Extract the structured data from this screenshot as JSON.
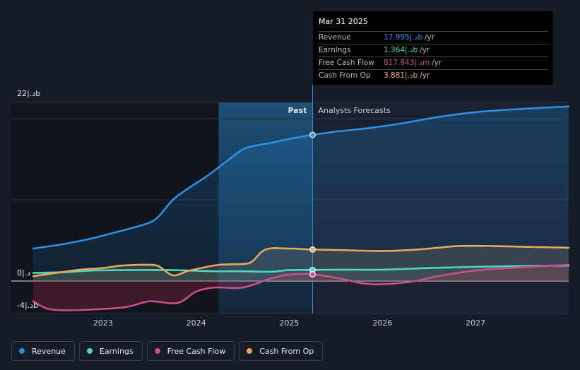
{
  "chart_data": {
    "type": "line",
    "title": "",
    "xlabel": "",
    "ylabel": "",
    "y_unit_label": "",
    "ylim": [
      -4,
      22
    ],
    "xlim": [
      2022.25,
      2028.0
    ],
    "y_tick_labels": [
      {
        "value": 22,
        "label": "22|.دb"
      },
      {
        "value": 0,
        "label": "0|.د"
      },
      {
        "value": -4,
        "label": "-4|.دb"
      }
    ],
    "x_ticks": [
      {
        "value": 2023,
        "label": "2023"
      },
      {
        "value": 2024,
        "label": "2024"
      },
      {
        "value": 2025,
        "label": "2025"
      },
      {
        "value": 2026,
        "label": "2026"
      },
      {
        "value": 2027,
        "label": "2027"
      }
    ],
    "past_label": "Past",
    "forecast_label": "Analysts Forecasts",
    "past_end_x": 2025.25,
    "past_start_x": 2024.24,
    "series": [
      {
        "name": "Revenue",
        "color": "#2f8fe0",
        "points": [
          [
            2022.25,
            4.0
          ],
          [
            2022.6,
            4.6
          ],
          [
            2022.9,
            5.3
          ],
          [
            2023.1,
            5.9
          ],
          [
            2023.3,
            6.5
          ],
          [
            2023.5,
            7.2
          ],
          [
            2023.6,
            8.0
          ],
          [
            2023.75,
            10.0
          ],
          [
            2023.9,
            11.3
          ],
          [
            2024.1,
            12.8
          ],
          [
            2024.3,
            14.5
          ],
          [
            2024.5,
            16.2
          ],
          [
            2024.65,
            16.7
          ],
          [
            2024.8,
            17.0
          ],
          [
            2025.0,
            17.5
          ],
          [
            2025.25,
            17.995
          ],
          [
            2025.5,
            18.4
          ],
          [
            2025.9,
            18.9
          ],
          [
            2026.2,
            19.4
          ],
          [
            2026.6,
            20.2
          ],
          [
            2027.0,
            20.8
          ],
          [
            2027.5,
            21.2
          ],
          [
            2028.0,
            21.5
          ]
        ]
      },
      {
        "name": "Earnings",
        "color": "#4fd6c0",
        "points": [
          [
            2022.25,
            1.0
          ],
          [
            2022.6,
            1.1
          ],
          [
            2022.9,
            1.3
          ],
          [
            2023.3,
            1.35
          ],
          [
            2023.7,
            1.35
          ],
          [
            2023.9,
            1.3
          ],
          [
            2024.2,
            1.2
          ],
          [
            2024.5,
            1.2
          ],
          [
            2024.8,
            1.15
          ],
          [
            2025.0,
            1.35
          ],
          [
            2025.25,
            1.364
          ],
          [
            2025.5,
            1.4
          ],
          [
            2026.0,
            1.4
          ],
          [
            2026.5,
            1.6
          ],
          [
            2027.0,
            1.75
          ],
          [
            2027.5,
            1.85
          ],
          [
            2028.0,
            1.9
          ]
        ]
      },
      {
        "name": "Free Cash Flow",
        "color": "#c94f8a",
        "points": [
          [
            2022.25,
            -2.5
          ],
          [
            2022.4,
            -3.4
          ],
          [
            2022.6,
            -3.6
          ],
          [
            2022.9,
            -3.5
          ],
          [
            2023.25,
            -3.2
          ],
          [
            2023.5,
            -2.5
          ],
          [
            2023.8,
            -2.7
          ],
          [
            2024.0,
            -1.3
          ],
          [
            2024.2,
            -0.8
          ],
          [
            2024.5,
            -0.8
          ],
          [
            2024.8,
            0.3
          ],
          [
            2025.0,
            0.8
          ],
          [
            2025.25,
            0.818
          ],
          [
            2025.5,
            0.4
          ],
          [
            2025.8,
            -0.3
          ],
          [
            2026.0,
            -0.4
          ],
          [
            2026.3,
            -0.1
          ],
          [
            2026.6,
            0.6
          ],
          [
            2027.0,
            1.3
          ],
          [
            2027.5,
            1.7
          ],
          [
            2028.0,
            2.0
          ]
        ]
      },
      {
        "name": "Cash From Op",
        "color": "#e8a85a",
        "points": [
          [
            2022.25,
            0.6
          ],
          [
            2022.5,
            1.0
          ],
          [
            2022.75,
            1.4
          ],
          [
            2023.0,
            1.6
          ],
          [
            2023.2,
            1.9
          ],
          [
            2023.5,
            2.0
          ],
          [
            2023.6,
            1.8
          ],
          [
            2023.75,
            0.7
          ],
          [
            2023.9,
            1.2
          ],
          [
            2024.05,
            1.6
          ],
          [
            2024.25,
            2.0
          ],
          [
            2024.5,
            2.1
          ],
          [
            2024.6,
            2.4
          ],
          [
            2024.75,
            3.9
          ],
          [
            2025.0,
            4.0
          ],
          [
            2025.25,
            3.881
          ],
          [
            2025.6,
            3.8
          ],
          [
            2026.0,
            3.7
          ],
          [
            2026.4,
            3.9
          ],
          [
            2026.8,
            4.3
          ],
          [
            2027.2,
            4.3
          ],
          [
            2027.6,
            4.2
          ],
          [
            2028.0,
            4.1
          ]
        ]
      }
    ]
  },
  "tooltip": {
    "date": "Mar 31 2025",
    "rows": [
      {
        "label": "Revenue",
        "value": "17.995|.دb",
        "unit": "/yr",
        "color": "#2f8fe0"
      },
      {
        "label": "Earnings",
        "value": "1.364|.دb",
        "unit": "/yr",
        "color": "#4fd6c0"
      },
      {
        "label": "Free Cash Flow",
        "value": "817.943|.دm",
        "unit": "/yr",
        "color": "#c94f8a"
      },
      {
        "label": "Cash From Op",
        "value": "3.881|.دb",
        "unit": "/yr",
        "color": "#e8a85a"
      }
    ]
  },
  "legend": [
    {
      "label": "Revenue",
      "color": "#2f8fe0"
    },
    {
      "label": "Earnings",
      "color": "#4fd6c0"
    },
    {
      "label": "Free Cash Flow",
      "color": "#c94f8a"
    },
    {
      "label": "Cash From Op",
      "color": "#e8a85a"
    }
  ]
}
